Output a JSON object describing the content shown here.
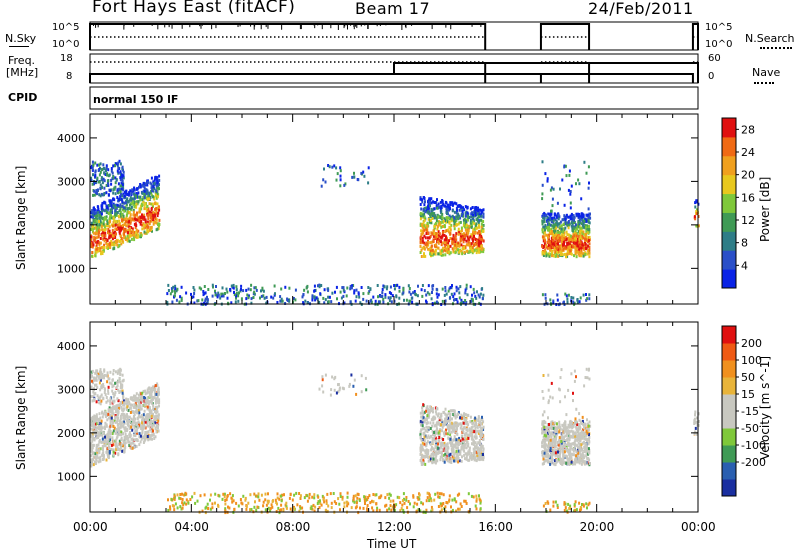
{
  "header": {
    "title": "Fort Hays East (fitACF)",
    "beam": "Beam 17",
    "date": "24/Feb/2011"
  },
  "summary_panels": {
    "nsky_label": "N.Sky",
    "nsky_ticks": [
      "10^5",
      "10^0"
    ],
    "nsearch_label": "N.Search",
    "nsearch_ticks": [
      "10^5",
      "10^0"
    ],
    "freq_label_1": "Freq.",
    "freq_label_2": "[MHz]",
    "freq_ticks": [
      "18",
      "8"
    ],
    "nave_label": "Nave",
    "nave_ticks": [
      "60",
      "0"
    ],
    "cpid_label": "CPID",
    "cpid_value": "normal 150 lF"
  },
  "colors": {
    "power_scale": [
      "#0a23e6",
      "#2a4fc8",
      "#2e7d87",
      "#3f9a55",
      "#7fc83a",
      "#e8c81e",
      "#f0a01e",
      "#f06a14",
      "#e01010"
    ],
    "velocity_scale": [
      "#e01010",
      "#ef5a14",
      "#f0901e",
      "#e8b43a",
      "#c8c8c0",
      "#c8c8c0",
      "#7fc83a",
      "#3f9a55",
      "#2a5fb0",
      "#1a2fa0"
    ]
  },
  "chart_data": [
    {
      "type": "heatmap",
      "title": "",
      "xlabel": "Time UT",
      "ylabel": "Slant Range [km]",
      "x_ticks": [
        "00:00",
        "04:00",
        "08:00",
        "12:00",
        "16:00",
        "20:00",
        "00:00"
      ],
      "y_ticks": [
        "1000",
        "2000",
        "3000",
        "4000"
      ],
      "ylim": [
        180,
        4550
      ],
      "colorbar_label": "Power [dB]",
      "colorbar_ticks": [
        "4",
        "8",
        "12",
        "16",
        "20",
        "24",
        "28"
      ],
      "colorbar_range": [
        0,
        30
      ]
    },
    {
      "type": "heatmap",
      "title": "",
      "xlabel": "Time UT",
      "ylabel": "Slant Range [km]",
      "x_ticks": [
        "00:00",
        "04:00",
        "08:00",
        "12:00",
        "16:00",
        "20:00",
        "00:00"
      ],
      "y_ticks": [
        "1000",
        "2000",
        "3000",
        "4000"
      ],
      "ylim": [
        180,
        4550
      ],
      "colorbar_label": "Velocity [m s^-1]",
      "colorbar_ticks": [
        "200",
        "100",
        "50",
        "15",
        "-15",
        "-50",
        "-100",
        "-200"
      ]
    }
  ]
}
